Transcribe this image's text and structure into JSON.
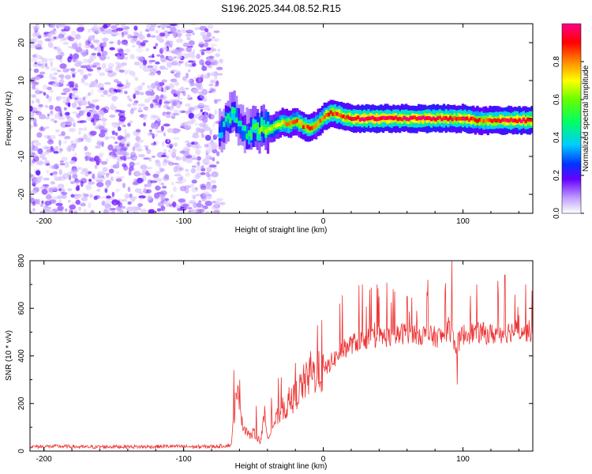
{
  "title": "S196.2025.344.08.52.R15",
  "chart_data": [
    {
      "type": "heatmap",
      "name": "spectrogram",
      "title": "S196.2025.344.08.52.R15",
      "xlabel": "Height of straight line (km)",
      "ylabel": "Frequency (Hz)",
      "xlim": [
        -210,
        150
      ],
      "ylim": [
        -25,
        25
      ],
      "xticks": [
        -200,
        -100,
        0,
        100
      ],
      "yticks": [
        -20,
        -10,
        0,
        10,
        20
      ],
      "noise_region_x": [
        -210,
        -75
      ],
      "ridge": {
        "x": [
          -75,
          -70,
          -65,
          -60,
          -55,
          -50,
          -45,
          -40,
          -35,
          -30,
          -25,
          -20,
          -15,
          -10,
          -5,
          0,
          5,
          10,
          15,
          20,
          30,
          40,
          50,
          60,
          70,
          80,
          90,
          100,
          110,
          120,
          130,
          140,
          150
        ],
        "frequency": [
          -4,
          -1,
          2,
          -2,
          -4,
          -3,
          -2.5,
          -3,
          -2,
          -1,
          -1.5,
          -0.5,
          -2,
          -2.5,
          -1.5,
          0.5,
          1.5,
          1,
          0.5,
          0,
          0,
          0,
          0,
          0,
          0,
          0,
          0,
          0,
          -0.5,
          -0.5,
          -0.5,
          -0.5,
          -0.5
        ],
        "amplitude": [
          0.35,
          0.45,
          0.5,
          0.4,
          0.45,
          0.55,
          0.6,
          0.65,
          0.7,
          0.75,
          0.8,
          0.8,
          0.85,
          0.85,
          0.8,
          0.85,
          0.9,
          0.9,
          0.9,
          0.95,
          0.97,
          0.98,
          0.98,
          0.95,
          0.95,
          0.97,
          0.9,
          0.95,
          0.85,
          0.9,
          0.95,
          0.97,
          0.97
        ]
      },
      "colorbar": {
        "label": "Normalized spectral amplitude",
        "range": [
          0,
          1
        ],
        "ticks": [
          "0.0",
          "0.2",
          "0.4",
          "0.6",
          "0.8"
        ]
      }
    },
    {
      "type": "line",
      "name": "snr",
      "xlabel": "Height of straight line (km)",
      "ylabel": "SNR (10 * v/v)",
      "xlim": [
        -210,
        150
      ],
      "ylim": [
        0,
        800
      ],
      "xticks": [
        -200,
        -100,
        0,
        100
      ],
      "yticks": [
        0,
        200,
        400,
        600,
        800
      ],
      "color": "#ee3333",
      "series": [
        {
          "name": "SNR",
          "x": [
            -210,
            -190,
            -170,
            -150,
            -130,
            -110,
            -90,
            -75,
            -66,
            -63,
            -60,
            -58,
            -55,
            -52,
            -50,
            -45,
            -42,
            -40,
            -35,
            -30,
            -25,
            -20,
            -15,
            -10,
            -5,
            0,
            5,
            10,
            15,
            20,
            30,
            40,
            50,
            60,
            70,
            80,
            85,
            90,
            95,
            100,
            110,
            120,
            130,
            140,
            150
          ],
          "y": [
            18,
            20,
            17,
            19,
            18,
            20,
            18,
            20,
            25,
            200,
            240,
            110,
            90,
            60,
            80,
            40,
            150,
            60,
            120,
            170,
            190,
            230,
            280,
            310,
            330,
            330,
            370,
            400,
            430,
            450,
            470,
            480,
            480,
            500,
            490,
            480,
            480,
            520,
            440,
            490,
            500,
            490,
            500,
            510,
            500
          ]
        }
      ],
      "spikes": [
        {
          "x": -64,
          "y": 340
        },
        {
          "x": -60,
          "y": 300
        },
        {
          "x": -48,
          "y": 190
        },
        {
          "x": -30,
          "y": 310
        },
        {
          "x": -20,
          "y": 370
        },
        {
          "x": -9,
          "y": 420
        },
        {
          "x": -1,
          "y": 550
        },
        {
          "x": 12,
          "y": 620
        },
        {
          "x": 28,
          "y": 700
        },
        {
          "x": 40,
          "y": 650
        },
        {
          "x": 50,
          "y": 680
        },
        {
          "x": 60,
          "y": 650
        },
        {
          "x": 75,
          "y": 720
        },
        {
          "x": 92,
          "y": 800
        },
        {
          "x": 96,
          "y": 280
        },
        {
          "x": 110,
          "y": 700
        },
        {
          "x": 130,
          "y": 740
        },
        {
          "x": 145,
          "y": 700
        }
      ]
    }
  ]
}
